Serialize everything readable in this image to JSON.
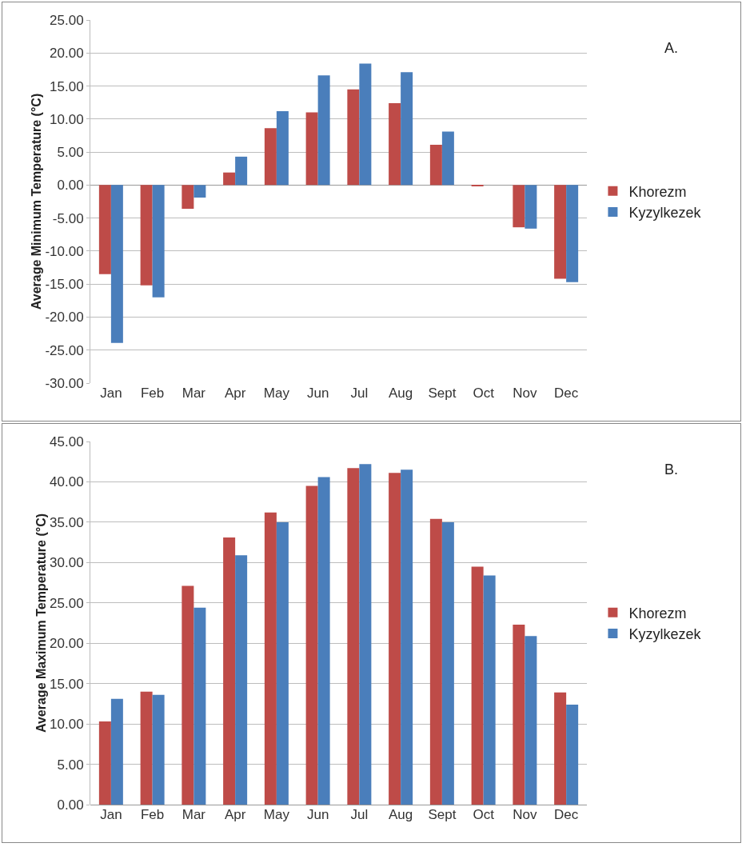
{
  "chart_data": [
    {
      "type": "bar",
      "ylabel": "Average Minimum Temperature (°C)",
      "annotations": [
        "A."
      ],
      "categories": [
        "Jan",
        "Feb",
        "Mar",
        "Apr",
        "May",
        "Jun",
        "Jul",
        "Aug",
        "Sept",
        "Oct",
        "Nov",
        "Dec"
      ],
      "series": [
        {
          "name": "Khorezm",
          "color": "#be4b48",
          "values": [
            -13.5,
            -15.2,
            -3.6,
            1.9,
            8.6,
            11.0,
            14.5,
            12.4,
            6.1,
            -0.2,
            -6.4,
            -14.2
          ]
        },
        {
          "name": "Kyzylkezek",
          "color": "#4a7ebb",
          "values": [
            -23.9,
            -17.0,
            -1.9,
            4.3,
            11.2,
            16.6,
            18.4,
            17.1,
            8.1,
            null,
            -6.6,
            -14.7
          ]
        }
      ],
      "ylim": [
        -30,
        25
      ],
      "yticks": [
        {
          "value": -30,
          "label": "-30.00"
        },
        {
          "value": -25,
          "label": "-25.00"
        },
        {
          "value": -20,
          "label": "-20.00"
        },
        {
          "value": -15,
          "label": "-15.00"
        },
        {
          "value": -10,
          "label": "-10.00"
        },
        {
          "value": -5,
          "label": "-5.00"
        },
        {
          "value": 0,
          "label": "0.00"
        },
        {
          "value": 5,
          "label": "5.00"
        },
        {
          "value": 10,
          "label": "10.00"
        },
        {
          "value": 15,
          "label": "15.00"
        },
        {
          "value": 20,
          "label": "20.00"
        },
        {
          "value": 25,
          "label": "25.00"
        }
      ],
      "grid": "y",
      "legend": "right"
    },
    {
      "type": "bar",
      "ylabel": "Average Maximum Temperature (°C)",
      "annotations": [
        "B."
      ],
      "categories": [
        "Jan",
        "Feb",
        "Mar",
        "Apr",
        "May",
        "Jun",
        "Jul",
        "Aug",
        "Sept",
        "Oct",
        "Nov",
        "Dec"
      ],
      "series": [
        {
          "name": "Khorezm",
          "color": "#be4b48",
          "values": [
            10.3,
            14.0,
            27.1,
            33.1,
            36.2,
            39.5,
            41.7,
            41.1,
            35.4,
            29.5,
            22.3,
            13.9
          ]
        },
        {
          "name": "Kyzylkezek",
          "color": "#4a7ebb",
          "values": [
            13.1,
            13.6,
            24.4,
            30.9,
            35.0,
            40.6,
            42.2,
            41.5,
            35.0,
            28.4,
            20.9,
            12.4
          ]
        }
      ],
      "ylim": [
        0,
        45
      ],
      "yticks": [
        {
          "value": 0,
          "label": "0.00"
        },
        {
          "value": 5,
          "label": "5.00"
        },
        {
          "value": 10,
          "label": "10.00"
        },
        {
          "value": 15,
          "label": "15.00"
        },
        {
          "value": 20,
          "label": "20.00"
        },
        {
          "value": 25,
          "label": "25.00"
        },
        {
          "value": 30,
          "label": "30.00"
        },
        {
          "value": 35,
          "label": "35.00"
        },
        {
          "value": 40,
          "label": "40.00"
        },
        {
          "value": 45,
          "label": "45.00"
        }
      ],
      "grid": "y",
      "legend": "right"
    }
  ]
}
